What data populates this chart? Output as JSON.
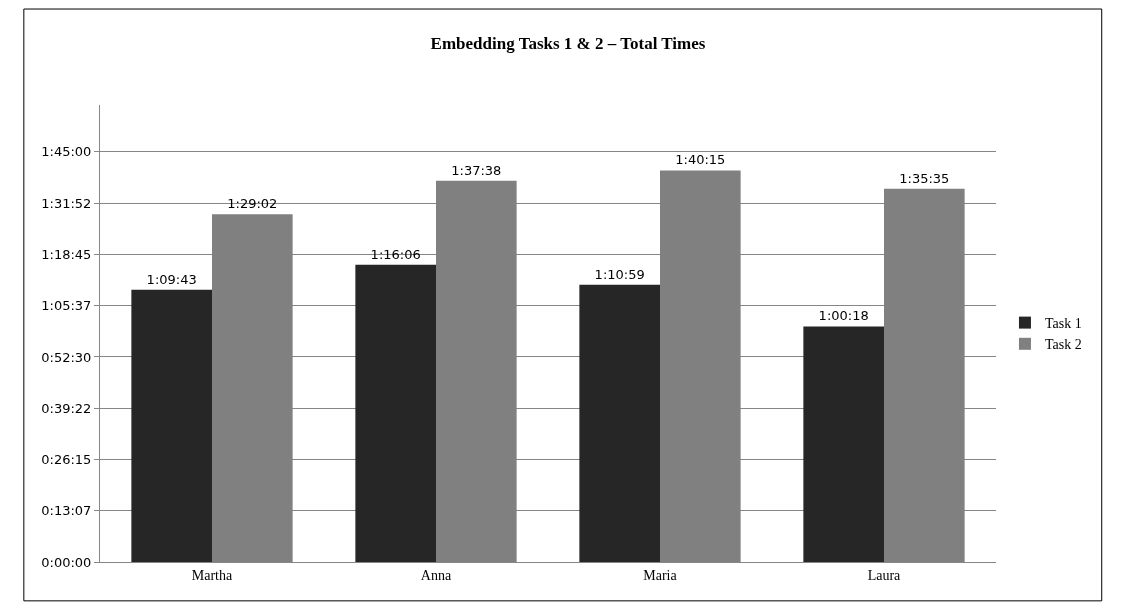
{
  "chart_data": {
    "type": "bar",
    "title": "Embedding Tasks 1 & 2 – Total Times",
    "categories": [
      "Martha",
      "Anna",
      "Maria",
      "Laura"
    ],
    "series": [
      {
        "name": "Task 1",
        "color": "#262626",
        "values": [
          69.717,
          76.1,
          70.983,
          60.3
        ],
        "value_labels": [
          "1:09:43",
          "1:16:06",
          "1:10:59",
          "1:00:18"
        ]
      },
      {
        "name": "Task 2",
        "color": "#808080",
        "values": [
          89.033,
          97.633,
          100.25,
          95.583
        ],
        "value_labels": [
          "1:29:02",
          "1:37:38",
          "1:40:15",
          "1:35:35"
        ]
      }
    ],
    "ylim": [
      0,
      117
    ],
    "yticks": [
      {
        "value": 0,
        "label": "0:00:00"
      },
      {
        "value": 13.125,
        "label": "0:13:07"
      },
      {
        "value": 26.25,
        "label": "0:26:15"
      },
      {
        "value": 39.375,
        "label": "0:39:22"
      },
      {
        "value": 52.5,
        "label": "0:52:30"
      },
      {
        "value": 65.625,
        "label": "1:05:37"
      },
      {
        "value": 78.75,
        "label": "1:18:45"
      },
      {
        "value": 91.875,
        "label": "1:31:52"
      },
      {
        "value": 105,
        "label": "1:45:00"
      }
    ],
    "grid": "y",
    "legend": "right"
  }
}
